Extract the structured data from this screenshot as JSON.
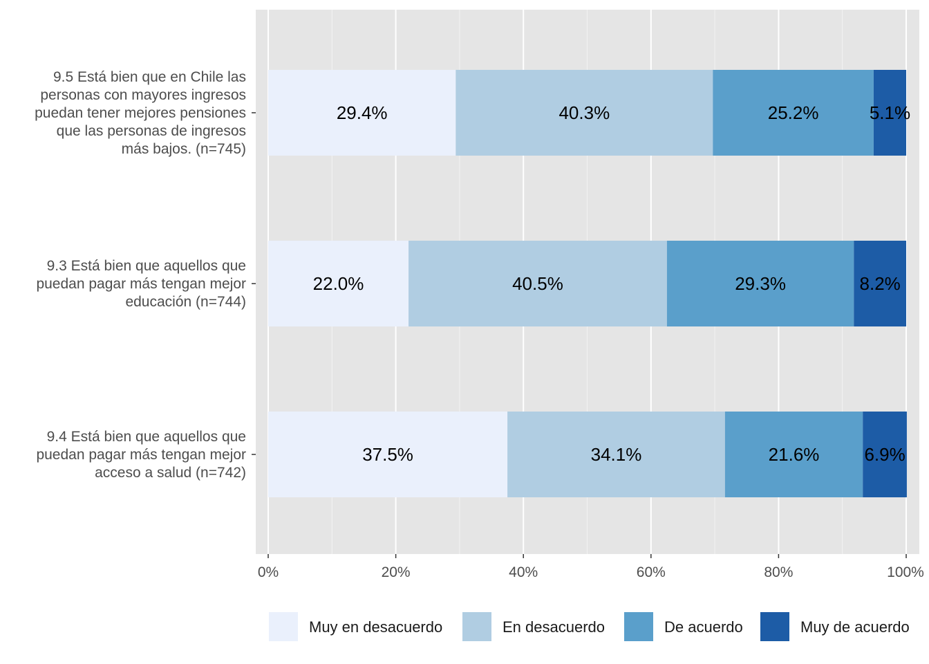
{
  "chart_data": {
    "type": "bar",
    "orientation": "horizontal",
    "stacked": true,
    "categories": [
      "9.5 Está bien que en Chile las personas con mayores ingresos puedan tener mejores pensiones que las personas de ingresos más bajos. (n=745)",
      "9.3 Está bien que aquellos que puedan pagar más tengan mejor educación (n=744)",
      "9.4 Está bien que aquellos que puedan pagar más tengan mejor acceso a salud (n=742)"
    ],
    "category_lines": [
      [
        "9.5 Está bien que en Chile las",
        "personas con mayores ingresos",
        "puedan tener mejores pensiones",
        "que las personas de ingresos",
        "más bajos. (n=745)"
      ],
      [
        "9.3 Está bien que aquellos que",
        "puedan pagar más tengan mejor",
        "educación (n=744)"
      ],
      [
        "9.4 Está bien que aquellos que",
        "puedan pagar más tengan mejor",
        "acceso a salud (n=742)"
      ]
    ],
    "series": [
      {
        "name": "Muy en desacuerdo",
        "color": "#eaf0fc",
        "values": [
          29.4,
          22.0,
          37.5
        ],
        "labels": [
          "29.4%",
          "22.0%",
          "37.5%"
        ]
      },
      {
        "name": "En desacuerdo",
        "color": "#b0cde2",
        "values": [
          40.3,
          40.5,
          34.1
        ],
        "labels": [
          "40.3%",
          "40.5%",
          "34.1%"
        ]
      },
      {
        "name": "De acuerdo",
        "color": "#5a9fcb",
        "values": [
          25.2,
          29.3,
          21.6
        ],
        "labels": [
          "25.2%",
          "29.3%",
          "21.6%"
        ]
      },
      {
        "name": "Muy de acuerdo",
        "color": "#1d5ca6",
        "values": [
          5.1,
          8.2,
          6.9
        ],
        "labels": [
          "5.1%",
          "8.2%",
          "6.9%"
        ]
      }
    ],
    "x_ticks": [
      "0%",
      "20%",
      "40%",
      "60%",
      "80%",
      "100%"
    ],
    "x_tick_values": [
      0,
      20,
      40,
      60,
      80,
      100
    ],
    "xlim": [
      0,
      100
    ],
    "grid": true,
    "legend_position": "bottom",
    "panel_background": "#e5e5e5"
  }
}
